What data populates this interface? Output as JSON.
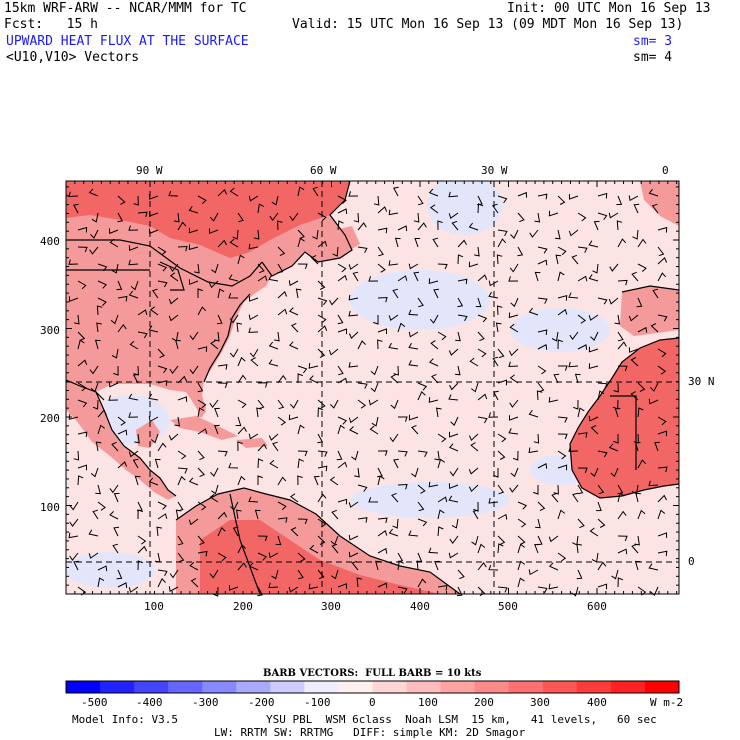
{
  "header": {
    "model_line": "15km WRF-ARW -- NCAR/MMM for TC",
    "init_line": "Init: 00 UTC Mon 16 Sep 13",
    "fcst_line": "Fcst:   15 h",
    "valid_line": "Valid: 15 UTC Mon 16 Sep 13 (09 MDT Mon 16 Sep 13)",
    "field_title": "UPWARD HEAT FLUX AT THE SURFACE",
    "sm1": "sm= 3",
    "vector_title": "<U10,V10> Vectors",
    "sm2": "sm= 4"
  },
  "map": {
    "top_lon_labels": [
      "90 W",
      "60 W",
      "30 W",
      "0"
    ],
    "right_lat_labels": [
      "30 N",
      "0"
    ],
    "left_axis_labels": [
      "400",
      "300",
      "200",
      "100"
    ],
    "bottom_axis_labels": [
      "100",
      "200",
      "300",
      "400",
      "500",
      "600"
    ],
    "colors": {
      "land_strong": "#f26666",
      "land_mid": "#f59a9a",
      "ocean_light": "#fde4e4",
      "ocean_blue": "#e3e6fb"
    }
  },
  "colorbar": {
    "barb_text": "BARB VECTORS:  FULL BARB = 10 kts",
    "labels": [
      "-500",
      "-400",
      "-300",
      "-200",
      "-100",
      "0",
      "100",
      "200",
      "300",
      "400"
    ],
    "units": "W m-2",
    "colors": [
      "#0000ff",
      "#2222ff",
      "#4444ff",
      "#6666ff",
      "#8888ff",
      "#aaaaff",
      "#ccccff",
      "#eeeeff",
      "#fff0f0",
      "#ffd6d6",
      "#ffbdbd",
      "#ffa3a3",
      "#ff8a8a",
      "#ff7070",
      "#ff5656",
      "#ff3c3c",
      "#ff2222",
      "#ff0000"
    ]
  },
  "footer": {
    "model_info": "Model Info: V3.5",
    "physics_line1": "YSU PBL  WSM 6class  Noah LSM  15 km,   41 levels,   60 sec",
    "physics_line2": "LW: RRTM SW: RRTMG   DIFF: simple KM: 2D Smagor"
  }
}
